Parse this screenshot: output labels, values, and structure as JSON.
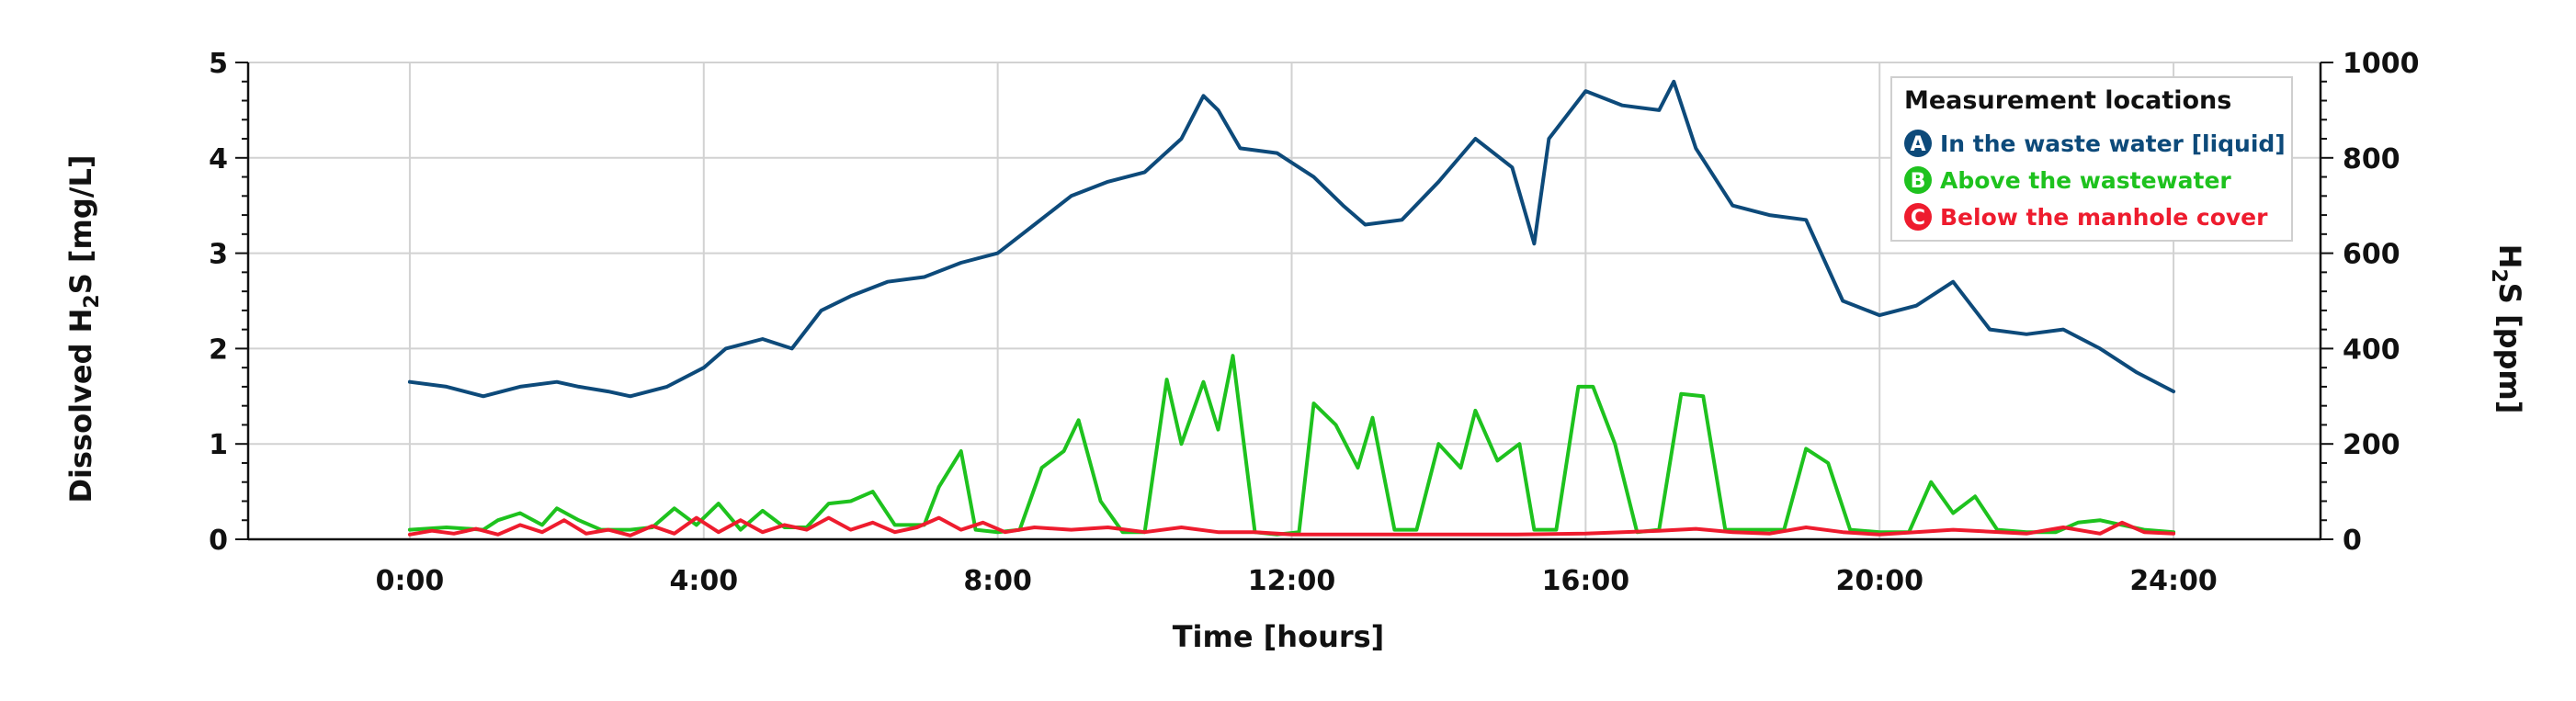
{
  "chart_data": {
    "type": "line",
    "title": "",
    "xlabel": "Time [hours]",
    "ylabel_left": "Dissolved H",
    "ylabel_left_sub": "2",
    "ylabel_left_tail": "S [mg/L]",
    "ylabel_right": "H",
    "ylabel_right_sub": "2",
    "ylabel_right_tail": "S [ppm]",
    "x_unit": "hours",
    "xlim": [
      -2.2,
      26
    ],
    "ylim_left": [
      0,
      5
    ],
    "ylim_right": [
      0,
      1000
    ],
    "x_ticks": [
      0,
      4,
      8,
      12,
      16,
      20,
      24
    ],
    "x_tick_labels": [
      "0:00",
      "4:00",
      "8:00",
      "12:00",
      "16:00",
      "20:00",
      "24:00"
    ],
    "y_left_ticks": [
      0,
      1,
      2,
      3,
      4,
      5
    ],
    "y_left_tick_labels": [
      "0",
      "1",
      "2",
      "3",
      "4",
      "5"
    ],
    "y_right_ticks": [
      0,
      200,
      400,
      600,
      800,
      1000
    ],
    "y_right_tick_labels": [
      "0",
      "200",
      "400",
      "600",
      "800",
      "1000"
    ],
    "grid": true,
    "legend": {
      "title": "Measurement locations",
      "placement": "top-right"
    },
    "series": [
      {
        "name": "In the waste water [liquid]",
        "badge": "A",
        "axis": "left",
        "color": "#0d4a7a",
        "x": [
          0,
          0.5,
          1,
          1.5,
          2,
          2.3,
          2.7,
          3,
          3.5,
          4,
          4.3,
          4.8,
          5.2,
          5.6,
          6,
          6.5,
          7,
          7.5,
          8,
          8.5,
          9,
          9.5,
          10,
          10.5,
          10.8,
          11,
          11.3,
          11.8,
          12.3,
          12.7,
          13,
          13.5,
          14,
          14.5,
          15,
          15.3,
          15.5,
          16,
          16.5,
          17,
          17.2,
          17.5,
          18,
          18.5,
          19,
          19.5,
          20,
          20.5,
          21,
          21.5,
          22,
          22.5,
          23,
          23.5,
          24
        ],
        "y": [
          1.65,
          1.6,
          1.5,
          1.6,
          1.65,
          1.6,
          1.55,
          1.5,
          1.6,
          1.8,
          2.0,
          2.1,
          2.0,
          2.4,
          2.55,
          2.7,
          2.75,
          2.9,
          3.0,
          3.3,
          3.6,
          3.75,
          3.85,
          4.2,
          4.65,
          4.5,
          4.1,
          4.05,
          3.8,
          3.5,
          3.3,
          3.35,
          3.75,
          4.2,
          3.9,
          3.1,
          4.2,
          4.7,
          4.55,
          4.5,
          4.8,
          4.1,
          3.5,
          3.4,
          3.35,
          2.5,
          2.35,
          2.45,
          2.7,
          2.2,
          2.15,
          2.2,
          2.0,
          1.75,
          1.55
        ]
      },
      {
        "name": "Above the wastewater",
        "badge": "B",
        "axis": "right",
        "color": "#1ec21e",
        "x": [
          0,
          0.5,
          1,
          1.2,
          1.5,
          1.8,
          2,
          2.3,
          2.6,
          3,
          3.3,
          3.6,
          3.9,
          4.2,
          4.5,
          4.8,
          5.1,
          5.4,
          5.7,
          6,
          6.3,
          6.6,
          7,
          7.2,
          7.5,
          7.7,
          8,
          8.3,
          8.6,
          8.9,
          9.1,
          9.4,
          9.7,
          10,
          10.3,
          10.5,
          10.8,
          11,
          11.2,
          11.5,
          11.8,
          12.1,
          12.3,
          12.6,
          12.9,
          13.1,
          13.4,
          13.7,
          14,
          14.3,
          14.5,
          14.8,
          15.1,
          15.3,
          15.6,
          15.9,
          16.1,
          16.4,
          16.7,
          17,
          17.3,
          17.6,
          17.9,
          18.1,
          18.4,
          18.7,
          19,
          19.3,
          19.6,
          20,
          20.4,
          20.7,
          21,
          21.3,
          21.6,
          22,
          22.4,
          22.7,
          23,
          23.3,
          23.6,
          24
        ],
        "y": [
          20,
          25,
          20,
          40,
          55,
          30,
          65,
          40,
          20,
          20,
          25,
          65,
          30,
          75,
          20,
          60,
          25,
          25,
          75,
          80,
          100,
          30,
          30,
          110,
          185,
          20,
          15,
          20,
          150,
          185,
          250,
          80,
          15,
          15,
          335,
          200,
          330,
          230,
          385,
          15,
          10,
          15,
          285,
          240,
          150,
          255,
          20,
          20,
          200,
          150,
          270,
          165,
          200,
          20,
          20,
          320,
          320,
          200,
          15,
          20,
          305,
          300,
          20,
          20,
          20,
          20,
          190,
          160,
          20,
          15,
          15,
          120,
          55,
          90,
          20,
          15,
          15,
          35,
          40,
          30,
          20,
          15
        ]
      },
      {
        "name": "Below the manhole cover",
        "badge": "C",
        "axis": "right",
        "color": "#ee1c2e",
        "x": [
          0,
          0.3,
          0.6,
          0.9,
          1.2,
          1.5,
          1.8,
          2.1,
          2.4,
          2.7,
          3,
          3.3,
          3.6,
          3.9,
          4.2,
          4.5,
          4.8,
          5.1,
          5.4,
          5.7,
          6,
          6.3,
          6.6,
          6.9,
          7.2,
          7.5,
          7.8,
          8.1,
          8.5,
          9,
          9.5,
          10,
          10.5,
          11,
          11.5,
          12,
          13,
          14,
          15,
          16,
          17,
          17.5,
          18,
          18.5,
          19,
          19.5,
          20,
          21,
          22,
          22.5,
          23,
          23.3,
          23.6,
          24
        ],
        "y": [
          10,
          18,
          12,
          22,
          10,
          30,
          15,
          40,
          12,
          20,
          8,
          28,
          12,
          45,
          15,
          40,
          15,
          30,
          20,
          45,
          20,
          35,
          15,
          25,
          45,
          20,
          35,
          15,
          25,
          20,
          25,
          15,
          25,
          15,
          15,
          10,
          10,
          10,
          10,
          12,
          18,
          22,
          15,
          12,
          25,
          15,
          10,
          20,
          12,
          25,
          12,
          35,
          15,
          12
        ]
      }
    ]
  }
}
